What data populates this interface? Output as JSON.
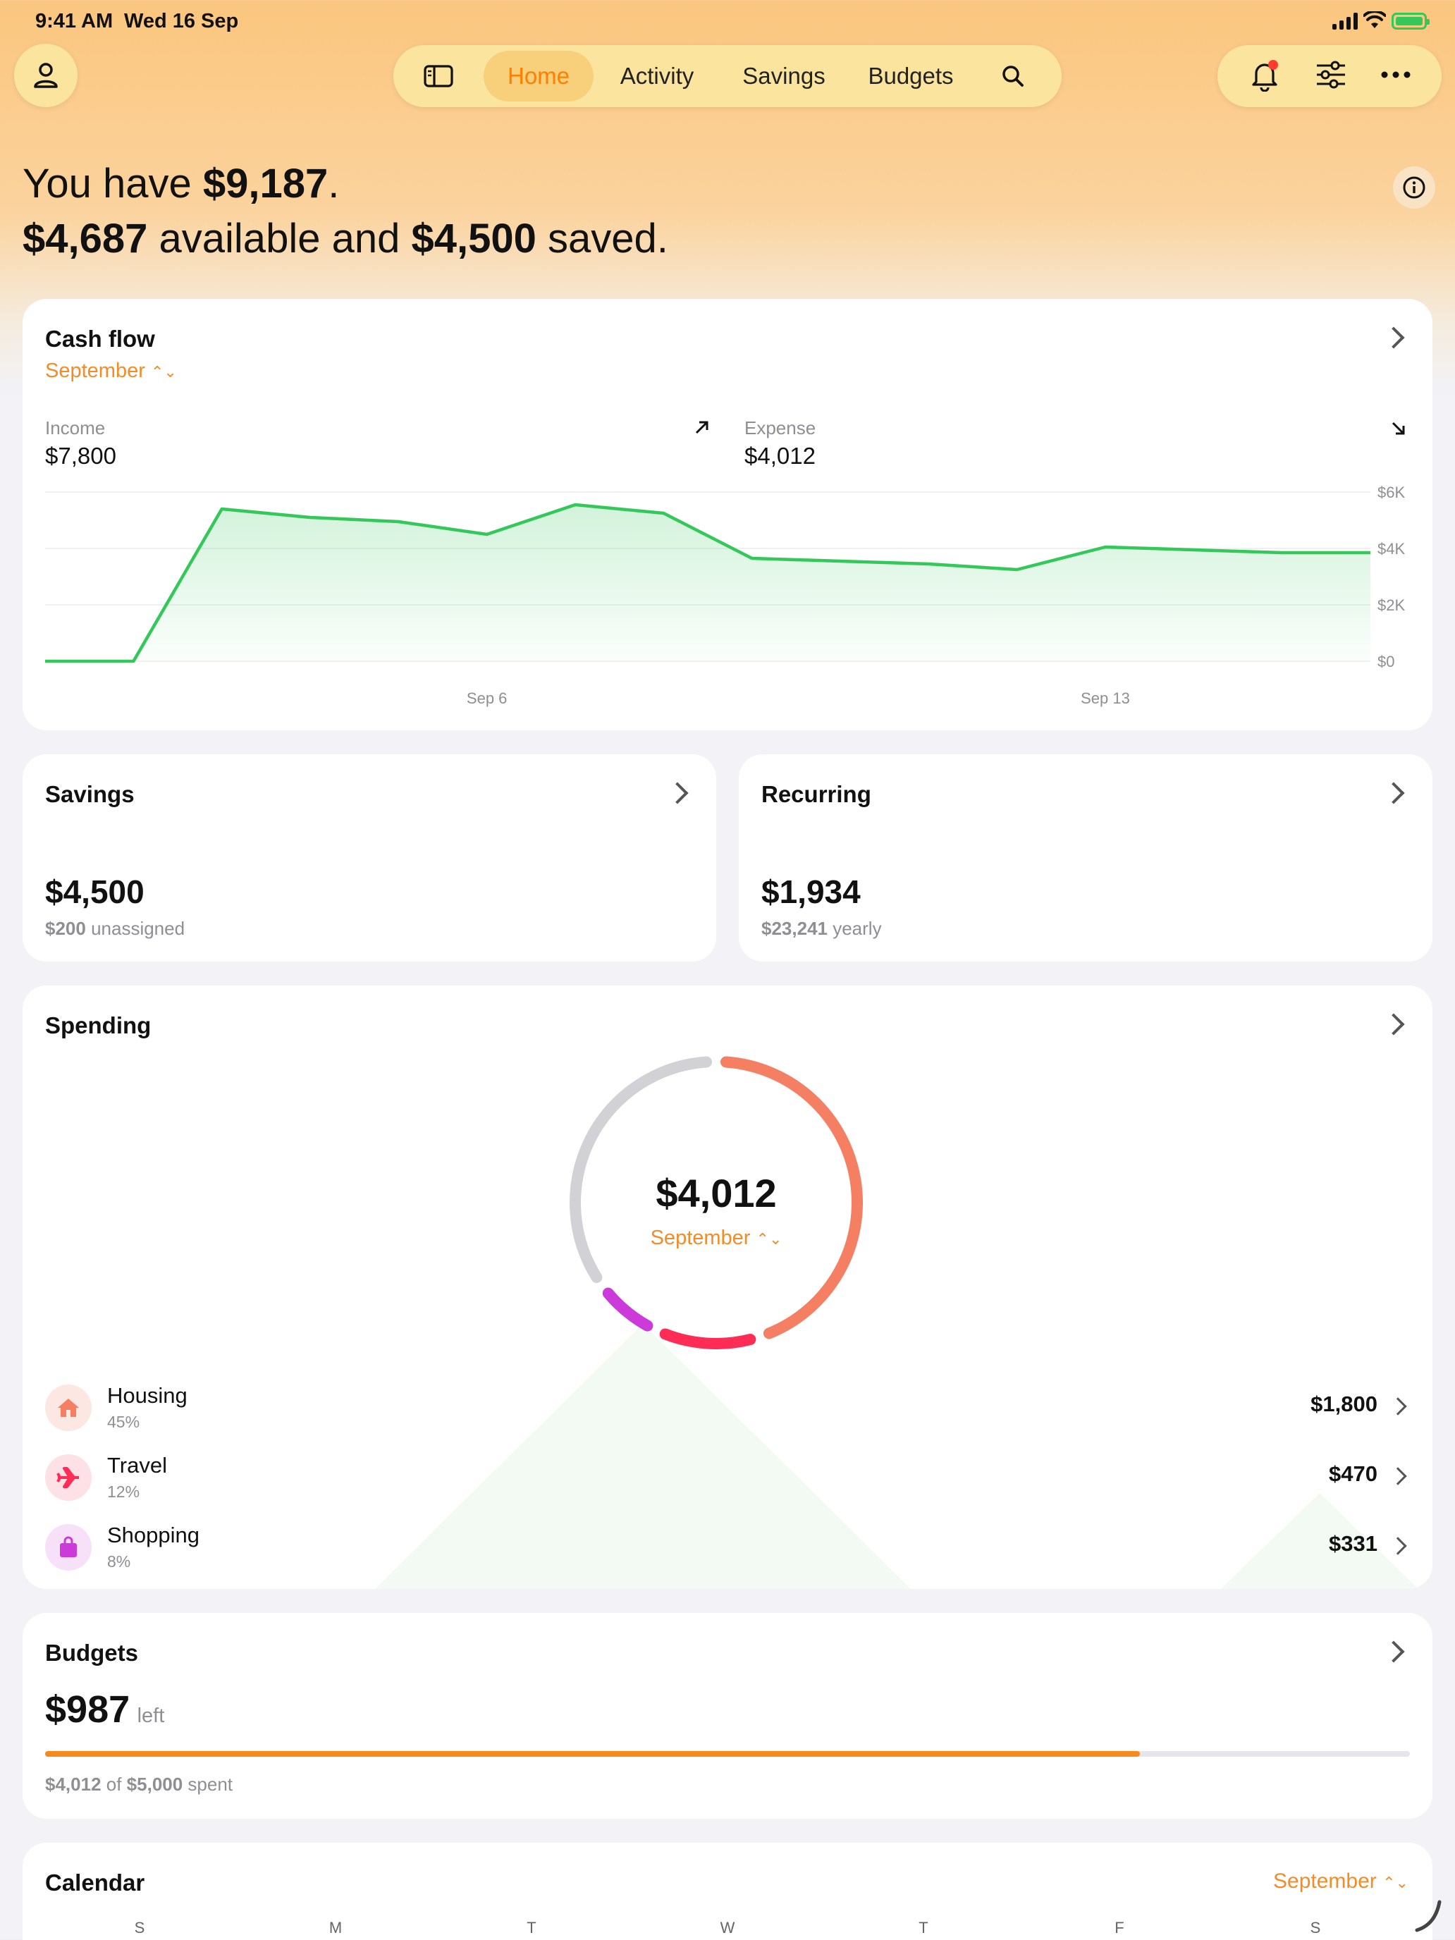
{
  "status_bar": {
    "time": "9:41 AM",
    "date": "Wed 16 Sep"
  },
  "nav": {
    "tabs": [
      {
        "label": "Home",
        "active": true
      },
      {
        "label": "Activity",
        "active": false
      },
      {
        "label": "Savings",
        "active": false
      },
      {
        "label": "Budgets",
        "active": false
      }
    ]
  },
  "headline": {
    "line1_prefix": "You have ",
    "total": "$9,187",
    "line1_suffix": ".",
    "available": "$4,687",
    "available_text": " available and ",
    "saved": "$4,500",
    "saved_text": " saved."
  },
  "cash_flow": {
    "title": "Cash flow",
    "period": "September",
    "income_label": "Income",
    "income_value": "$7,800",
    "expense_label": "Expense",
    "expense_value": "$4,012"
  },
  "chart_data": {
    "type": "area",
    "x": [
      "Sep 1",
      "Sep 2",
      "Sep 3",
      "Sep 4",
      "Sep 5",
      "Sep 6",
      "Sep 7",
      "Sep 8",
      "Sep 9",
      "Sep 10",
      "Sep 11",
      "Sep 12",
      "Sep 13",
      "Sep 14",
      "Sep 15",
      "Sep 16"
    ],
    "values": [
      0,
      0,
      5400,
      5100,
      4950,
      4500,
      5550,
      5250,
      3650,
      3550,
      3450,
      3250,
      4050,
      3950,
      3850,
      3850
    ],
    "x_tick_labels": [
      "Sep 6",
      "Sep 13"
    ],
    "y_tick_labels": [
      "$6K",
      "$4K",
      "$2K",
      "$0"
    ],
    "ylim": [
      0,
      6000
    ],
    "line_color": "#34c759",
    "grid": true
  },
  "savings": {
    "title": "Savings",
    "amount": "$4,500",
    "unassigned_value": "$200",
    "unassigned_text": " unassigned"
  },
  "recurring": {
    "title": "Recurring",
    "amount": "$1,934",
    "yearly_value": "$23,241",
    "yearly_text": " yearly"
  },
  "spending": {
    "title": "Spending",
    "total": "$4,012",
    "period": "September",
    "ring": [
      {
        "name": "Housing",
        "fraction": 0.45,
        "color": "#f47f63"
      },
      {
        "name": "Travel",
        "fraction": 0.12,
        "color": "#ff2d55"
      },
      {
        "name": "Shopping",
        "fraction": 0.08,
        "color": "#cc3ad9"
      },
      {
        "name": "Remaining",
        "fraction": 0.35,
        "color": "#d1d1d6"
      }
    ],
    "categories": [
      {
        "name": "Housing",
        "pct": "45%",
        "amount": "$1,800",
        "icon": "house-icon",
        "color": "#f47f63",
        "bg": "#fde7e2"
      },
      {
        "name": "Travel",
        "pct": "12%",
        "amount": "$470",
        "icon": "airplane-icon",
        "color": "#ff2d55",
        "bg": "#fde1e6"
      },
      {
        "name": "Shopping",
        "pct": "8%",
        "amount": "$331",
        "icon": "bag-icon",
        "color": "#cc3ad9",
        "bg": "#f7e1f9"
      }
    ]
  },
  "budgets": {
    "title": "Budgets",
    "left_amount": "$987",
    "left_text": "left",
    "progress": 0.8024,
    "spent_value": "$4,012",
    "spent_of": " of ",
    "total_value": "$5,000",
    "spent_text": " spent",
    "bar_color": "#f7891f"
  },
  "calendar": {
    "title": "Calendar",
    "period": "September",
    "weekdays": [
      "S",
      "M",
      "T",
      "W",
      "T",
      "F",
      "S"
    ]
  }
}
